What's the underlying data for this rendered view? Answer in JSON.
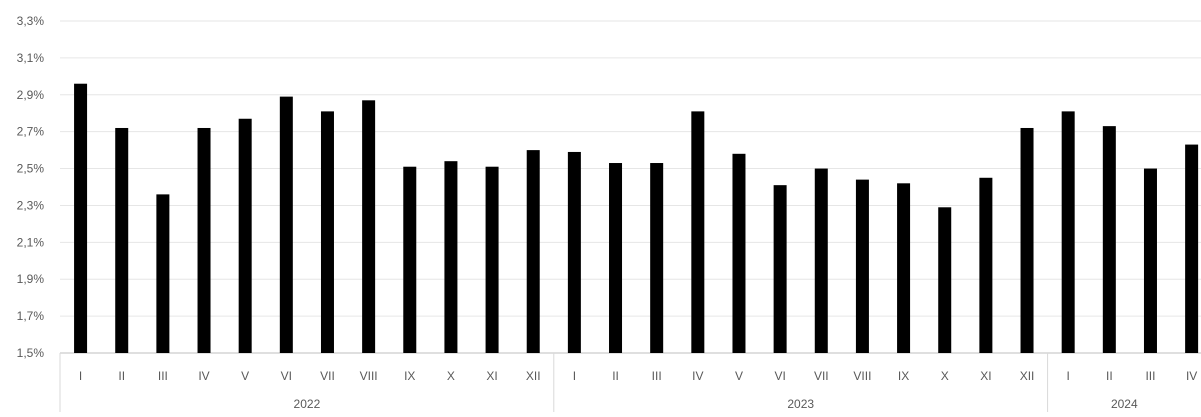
{
  "chart_data": {
    "type": "bar",
    "title": "",
    "xlabel": "",
    "ylabel": "",
    "ylim": [
      1.5,
      3.3
    ],
    "y_ticks": [
      "1,5%",
      "1,7%",
      "1,9%",
      "2,1%",
      "2,3%",
      "2,5%",
      "2,7%",
      "2,9%",
      "3,1%",
      "3,3%"
    ],
    "y_tick_values": [
      1.5,
      1.7,
      1.9,
      2.1,
      2.3,
      2.5,
      2.7,
      2.9,
      3.1,
      3.3
    ],
    "grid": "horizontal",
    "legend": "none",
    "bar_color": "#000000",
    "groups": [
      {
        "label": "2022",
        "categories": [
          "I",
          "II",
          "III",
          "IV",
          "V",
          "VI",
          "VII",
          "VIII",
          "IX",
          "X",
          "XI",
          "XII"
        ],
        "values": [
          2.96,
          2.72,
          2.36,
          2.72,
          2.77,
          2.89,
          2.81,
          2.87,
          2.51,
          2.54,
          2.51,
          2.6
        ]
      },
      {
        "label": "2023",
        "categories": [
          "I",
          "II",
          "III",
          "IV",
          "V",
          "VI",
          "VII",
          "VIII",
          "IX",
          "X",
          "XI",
          "XII"
        ],
        "values": [
          2.59,
          2.53,
          2.53,
          2.81,
          2.58,
          2.41,
          2.5,
          2.44,
          2.42,
          2.29,
          2.45,
          2.72
        ]
      },
      {
        "label": "2024",
        "categories": [
          "I",
          "II",
          "III",
          "IV"
        ],
        "values": [
          2.81,
          2.73,
          2.5,
          2.63
        ]
      }
    ]
  }
}
